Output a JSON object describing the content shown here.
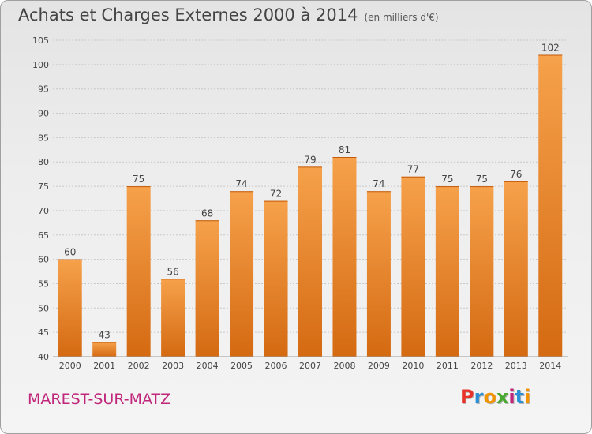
{
  "header": {
    "title": "Achats et Charges Externes 2000 à 2014",
    "subtitle": "(en milliers d'€)"
  },
  "footer": {
    "city": "MAREST-SUR-MATZ",
    "logo": "Proxiti",
    "logo_colors": [
      "#e8332a",
      "#2b8fd6",
      "#f29400",
      "#49a82f",
      "#c0267a",
      "#2b8fd6",
      "#f29400"
    ]
  },
  "colors": {
    "bar_top": "#f6a14b",
    "bar_bottom": "#d46a12",
    "grid": "#c8c8c8",
    "axis_text": "#444444"
  },
  "chart_data": {
    "type": "bar",
    "categories": [
      "2000",
      "2001",
      "2002",
      "2003",
      "2004",
      "2005",
      "2006",
      "2007",
      "2008",
      "2009",
      "2010",
      "2011",
      "2012",
      "2013",
      "2014"
    ],
    "values": [
      60,
      43,
      75,
      56,
      68,
      74,
      72,
      79,
      81,
      74,
      77,
      75,
      75,
      76,
      102
    ],
    "ylim": [
      40,
      105
    ],
    "yticks": [
      40,
      45,
      50,
      55,
      60,
      65,
      70,
      75,
      80,
      85,
      90,
      95,
      100,
      105
    ],
    "grid": true,
    "data_labels": true
  }
}
